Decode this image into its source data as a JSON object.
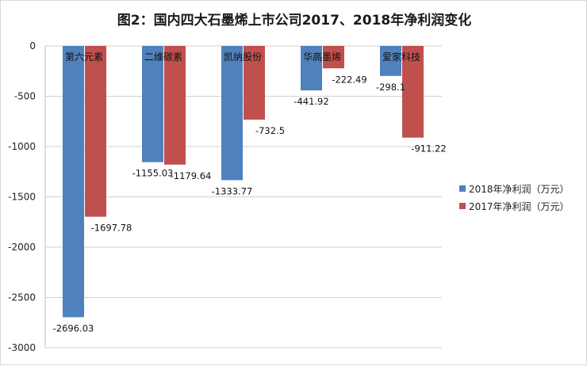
{
  "chart_data": {
    "type": "bar",
    "title": "图2：国内四大石墨烯上市公司2017、2018年净利润变化",
    "categories": [
      "第六元素",
      "二维碳素",
      "凯纳股份",
      "华高墨烯",
      "爱家科技"
    ],
    "series": [
      {
        "name": "2018年净利润（万元）",
        "color": "#4f81bd",
        "values": [
          -2696.03,
          -1155.03,
          -1333.77,
          -441.92,
          -298.1
        ],
        "labels": [
          "-2696.03",
          "-1155.03",
          "-1333.77",
          "-441.92",
          "-298.1"
        ]
      },
      {
        "name": "2017年净利润（万元）",
        "color": "#c0504d",
        "values": [
          -1697.78,
          -1179.64,
          -732.5,
          -222.49,
          -911.22
        ],
        "labels": [
          "-1697.78",
          "-1179.64",
          "-732.5",
          "-222.49",
          "-911.22"
        ]
      }
    ],
    "ylim": [
      -3000,
      0
    ],
    "yticks": [
      "0",
      "-500",
      "-1000",
      "-1500",
      "-2000",
      "-2500",
      "-3000"
    ],
    "grid": true,
    "legend_position": "right"
  }
}
